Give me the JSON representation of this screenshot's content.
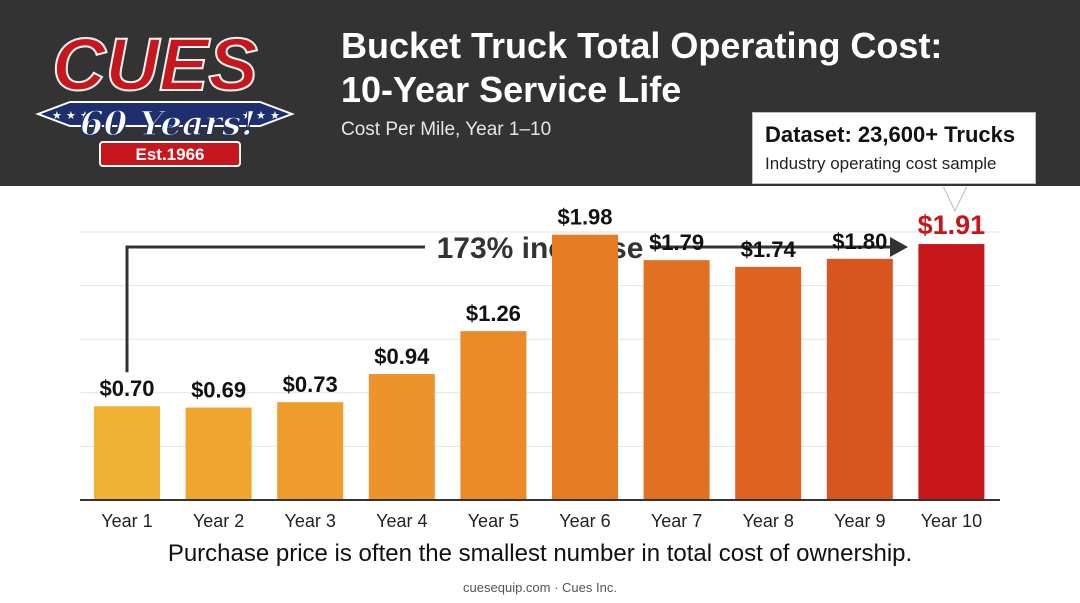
{
  "brand": {
    "logo_text": "CUES",
    "logo_years": "60 Years!",
    "logo_est": "Est.1966",
    "colors": {
      "header_bg": "#333333",
      "logo_red": "#c8161d",
      "logo_navy": "#1d2f6f"
    }
  },
  "header": {
    "title_line1": "Bucket Truck Total Operating Cost:",
    "title_line2": "10-Year Service Life",
    "subtitle": "Cost Per Mile, Year 1–10"
  },
  "callout": {
    "title": "Dataset: 23,600+ Trucks",
    "subtitle": "Industry operating cost sample"
  },
  "chart_data": {
    "type": "bar",
    "categories": [
      "Year 1",
      "Year 2",
      "Year 3",
      "Year 4",
      "Year 5",
      "Year 6",
      "Year 7",
      "Year 8",
      "Year 9",
      "Year 10"
    ],
    "values": [
      0.7,
      0.69,
      0.73,
      0.94,
      1.26,
      1.98,
      1.79,
      1.74,
      1.8,
      1.91
    ],
    "value_labels": [
      "$0.70",
      "$0.69",
      "$0.73",
      "$0.94",
      "$1.26",
      "$1.98",
      "$1.79",
      "$1.74",
      "$1.80",
      "$1.91"
    ],
    "bar_colors": [
      "#f2b233",
      "#f0a52f",
      "#ee9d2c",
      "#ec932a",
      "#ea8a28",
      "#e67d25",
      "#e27023",
      "#de6320",
      "#d9551f",
      "#c6161a"
    ],
    "highlight_label_color": "#c6161a",
    "annotation": "173% increase",
    "grid": true,
    "legend": "none"
  },
  "caption": "Purchase price is often the smallest number in total cost of ownership.",
  "credit": "cuesequip.com · Cues Inc."
}
